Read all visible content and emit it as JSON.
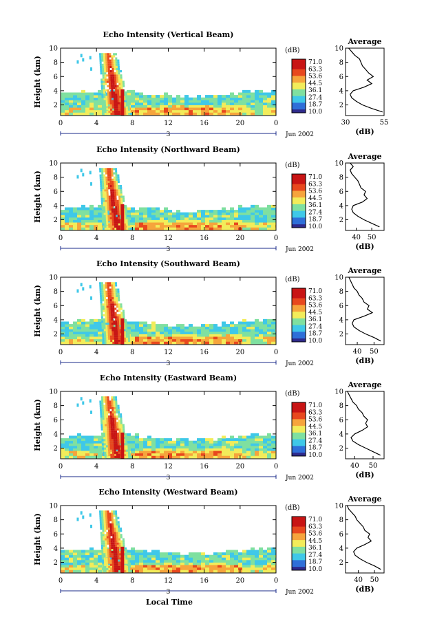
{
  "figure": {
    "xlabel": "Local Time",
    "colorbar_unit": "(dB)",
    "colorbar_ticks": [
      "71.0",
      "63.3",
      "53.6",
      "44.5",
      "36.1",
      "27.4",
      "18.7",
      "10.0"
    ],
    "date_label": "Jun 2002",
    "day_label": "3",
    "panel_colors": [
      "#2e2a8c",
      "#2f6fd8",
      "#3fc8e8",
      "#7fe0a0",
      "#f2ec5a",
      "#f6a43c",
      "#e8481e",
      "#c81414"
    ]
  },
  "chart_data": [
    {
      "type": "heatmap",
      "title": "Echo Intensity (Vertical Beam)",
      "ylabel": "Height (km)",
      "xlim": [
        0,
        24
      ],
      "ylim": [
        0.5,
        10
      ],
      "xticks": [
        "0",
        "4",
        "8",
        "12",
        "16",
        "20",
        "0"
      ],
      "yticks": [
        "2",
        "4",
        "6",
        "8",
        "10"
      ],
      "profile": {
        "title": "Average",
        "xlabel": "(dB)",
        "xticks": [
          "30",
          "55"
        ],
        "xlim": [
          30,
          55
        ],
        "heights": [
          1,
          1.5,
          2,
          2.5,
          3,
          3.5,
          4,
          4.5,
          5,
          5.5,
          6,
          6.5,
          7,
          7.5,
          8,
          8.5,
          9,
          9.5,
          10
        ],
        "values": [
          54,
          47,
          41,
          37,
          34,
          33,
          35,
          42,
          47,
          44,
          48,
          45,
          43,
          41,
          40,
          39,
          36,
          34,
          32
        ]
      }
    },
    {
      "type": "heatmap",
      "title": "Echo Intensity (Northward Beam)",
      "ylabel": "Height (km)",
      "xlim": [
        0,
        24
      ],
      "ylim": [
        0.5,
        10
      ],
      "xticks": [
        "0",
        "4",
        "8",
        "12",
        "16",
        "20",
        "0"
      ],
      "yticks": [
        "2",
        "4",
        "6",
        "8",
        "10"
      ],
      "profile": {
        "title": "Average",
        "xlabel": "(dB)",
        "xticks": [
          "40",
          "50"
        ],
        "xlim": [
          33,
          58
        ],
        "heights": [
          1,
          1.5,
          2,
          2.5,
          3,
          3.5,
          4,
          4.5,
          5,
          5.5,
          6,
          6.5,
          7,
          7.5,
          8,
          8.5,
          9,
          9.5,
          10
        ],
        "values": [
          55,
          50,
          45,
          41,
          38,
          37,
          38,
          44,
          47,
          45,
          46,
          43,
          42,
          41,
          39,
          37,
          36,
          38,
          36
        ]
      }
    },
    {
      "type": "heatmap",
      "title": "Echo Intensity (Southward Beam)",
      "ylabel": "Height (km)",
      "xlim": [
        0,
        24
      ],
      "ylim": [
        0.5,
        10
      ],
      "xticks": [
        "0",
        "4",
        "8",
        "12",
        "16",
        "20",
        "0"
      ],
      "yticks": [
        "2",
        "4",
        "6",
        "8",
        "10"
      ],
      "profile": {
        "title": "Average",
        "xlabel": "(dB)",
        "xticks": [
          "40",
          "50"
        ],
        "xlim": [
          33,
          56
        ],
        "heights": [
          1,
          1.5,
          2,
          2.5,
          3,
          3.5,
          4,
          4.5,
          5,
          5.5,
          6,
          6.5,
          7,
          7.5,
          8,
          8.5,
          9,
          9.5,
          10
        ],
        "values": [
          54,
          50,
          45,
          41,
          38,
          37,
          38,
          44,
          49,
          46,
          47,
          44,
          43,
          41,
          40,
          38,
          37,
          36,
          35
        ]
      }
    },
    {
      "type": "heatmap",
      "title": "Echo Intensity (Eastward Beam)",
      "ylabel": "Height (km)",
      "xlim": [
        0,
        24
      ],
      "ylim": [
        0.5,
        10
      ],
      "xticks": [
        "0",
        "4",
        "8",
        "12",
        "16",
        "20",
        "0"
      ],
      "yticks": [
        "2",
        "4",
        "6",
        "8",
        "10"
      ],
      "profile": {
        "title": "Average",
        "xlabel": "(dB)",
        "xticks": [
          "40",
          "50"
        ],
        "xlim": [
          35,
          56
        ],
        "heights": [
          1,
          1.5,
          2,
          2.5,
          3,
          3.5,
          4,
          4.5,
          5,
          5.5,
          6,
          6.5,
          7,
          7.5,
          8,
          8.5,
          9,
          9.5,
          10
        ],
        "values": [
          54,
          50,
          46,
          42,
          39,
          38,
          40,
          44,
          47,
          46,
          47,
          45,
          44,
          42,
          41,
          39,
          38,
          37,
          36
        ]
      }
    },
    {
      "type": "heatmap",
      "title": "Echo Intensity (Westward Beam)",
      "ylabel": "Height (km)",
      "xlim": [
        0,
        24
      ],
      "ylim": [
        0.5,
        10
      ],
      "xticks": [
        "0",
        "4",
        "8",
        "12",
        "16",
        "20",
        "0"
      ],
      "yticks": [
        "2",
        "4",
        "6",
        "8",
        "10"
      ],
      "profile": {
        "title": "Average",
        "xlabel": "(dB)",
        "xticks": [
          "40",
          "50"
        ],
        "xlim": [
          32,
          56
        ],
        "heights": [
          1,
          1.5,
          2,
          2.5,
          3,
          3.5,
          4,
          4.5,
          5,
          5.5,
          6,
          6.5,
          7,
          7.5,
          8,
          8.5,
          9,
          9.5,
          10
        ],
        "values": [
          54,
          50,
          45,
          41,
          38,
          37,
          39,
          44,
          48,
          46,
          47,
          44,
          43,
          41,
          39,
          38,
          36,
          34,
          33
        ]
      }
    }
  ]
}
